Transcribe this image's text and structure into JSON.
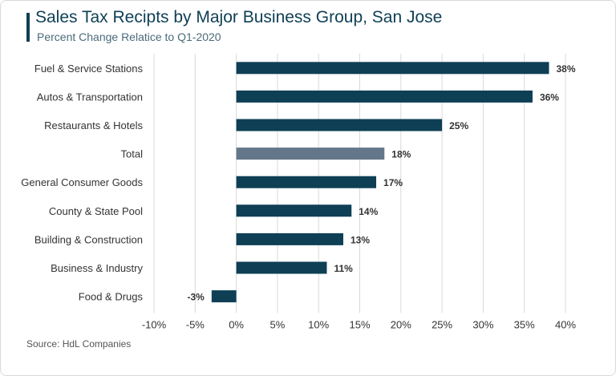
{
  "header": {
    "title": "Sales Tax Recipts by Major Business Group, San Jose",
    "subtitle": "Percent Change Relatice to Q1-2020"
  },
  "footer": {
    "source": "Source: HdL Companies"
  },
  "colors": {
    "bar": "#0e3f55",
    "highlight": "#64778a",
    "grid": "#d9d9d9",
    "label": "#333333"
  },
  "chart_data": {
    "type": "bar",
    "orientation": "horizontal",
    "categories": [
      "Fuel & Service Stations",
      "Autos & Transportation",
      "Restaurants & Hotels",
      "Total",
      "General Consumer Goods",
      "County & State Pool",
      "Building & Construction",
      "Business & Industry",
      "Food & Drugs"
    ],
    "values": [
      38,
      36,
      25,
      18,
      17,
      14,
      13,
      11,
      -3
    ],
    "data_labels": [
      "38%",
      "36%",
      "25%",
      "18%",
      "17%",
      "14%",
      "13%",
      "11%",
      "-3%"
    ],
    "highlight_category": "Total",
    "xlim": [
      -10,
      40
    ],
    "x_ticks": [
      -10,
      -5,
      0,
      5,
      10,
      15,
      20,
      25,
      30,
      35,
      40
    ],
    "x_tick_labels": [
      "-10%",
      "-5%",
      "0%",
      "5%",
      "10%",
      "15%",
      "20%",
      "25%",
      "30%",
      "35%",
      "40%"
    ],
    "grid": "vertical",
    "legend": "none",
    "title": "Sales Tax Recipts by Major Business Group, San Jose",
    "subtitle": "Percent Change Relatice to Q1-2020",
    "xlabel": "",
    "ylabel": ""
  }
}
